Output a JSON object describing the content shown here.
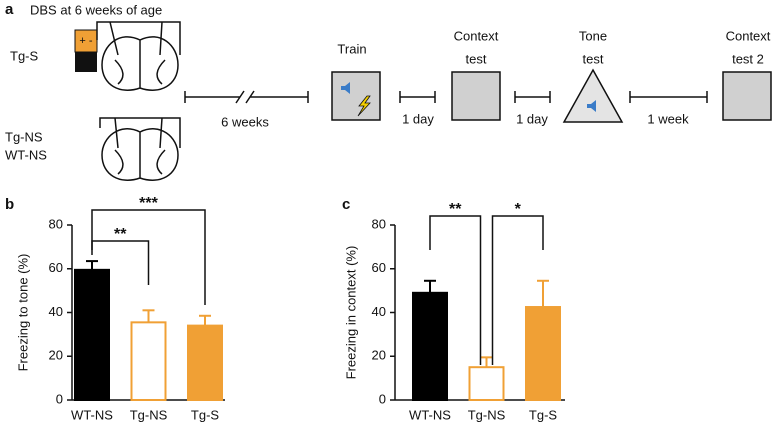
{
  "panel_labels": [
    "a",
    "b",
    "c"
  ],
  "diagram": {
    "dbs_label": "DBS at 6 weeks of age",
    "battery_sign": "+ -",
    "groups": [
      "Tg-S",
      "Tg-NS",
      "WT-NS"
    ],
    "intervals": [
      "6 weeks",
      "1 day",
      "1 day",
      "1 week"
    ],
    "stages": [
      [
        "Train"
      ],
      [
        "Context",
        "test"
      ],
      [
        "Tone",
        "test"
      ],
      [
        "Context",
        "test 2"
      ]
    ]
  },
  "chart_data": [
    {
      "type": "bar",
      "y_label": "Freezing to tone (%)",
      "categories": [
        "WT-NS",
        "Tg-NS",
        "Tg-S"
      ],
      "values": [
        59.5,
        35.5,
        34
      ],
      "errors": [
        4,
        5.5,
        4.5
      ],
      "colors": [
        "#000000",
        "#ffffff",
        "#f0a035"
      ],
      "edge_colors": [
        "#000000",
        "#f0a035",
        "#f0a035"
      ],
      "ylim": [
        0,
        80
      ],
      "yticks": [
        0,
        20,
        40,
        60,
        80
      ],
      "significance": [
        "***",
        "**"
      ]
    },
    {
      "type": "bar",
      "y_label": "Freezing in context (%)",
      "categories": [
        "WT-NS",
        "Tg-NS",
        "Tg-S"
      ],
      "values": [
        49,
        15,
        42.5
      ],
      "errors": [
        5.5,
        4.5,
        12
      ],
      "colors": [
        "#000000",
        "#ffffff",
        "#f0a035"
      ],
      "edge_colors": [
        "#000000",
        "#f0a035",
        "#f0a035"
      ],
      "ylim": [
        0,
        80
      ],
      "yticks": [
        0,
        20,
        40,
        60,
        80
      ],
      "significance": [
        "**",
        "*"
      ]
    }
  ]
}
